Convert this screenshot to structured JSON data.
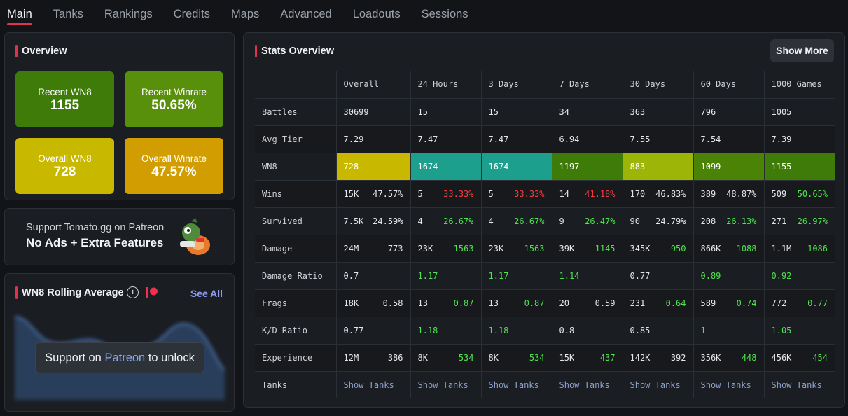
{
  "tabs": [
    "Main",
    "Tanks",
    "Rankings",
    "Credits",
    "Maps",
    "Advanced",
    "Loadouts",
    "Sessions"
  ],
  "overview": {
    "title": "Overview",
    "tiles": [
      {
        "label": "Recent WN8",
        "value": "1155",
        "color": "#3f7b08"
      },
      {
        "label": "Recent Winrate",
        "value": "50.65%",
        "color": "#588f0b"
      },
      {
        "label": "Overall WN8",
        "value": "728",
        "color": "#c9b800"
      },
      {
        "label": "Overall Winrate",
        "value": "47.57%",
        "color": "#d19d00"
      }
    ]
  },
  "patreon": {
    "line1": "Support Tomato.gg on Patreon",
    "line2": "No Ads + Extra Features"
  },
  "rolling": {
    "title": "WN8 Rolling Average",
    "see_all": "See All",
    "unlock_prefix": "Support on ",
    "unlock_link": "Patreon",
    "unlock_suffix": " to unlock"
  },
  "stats": {
    "title": "Stats Overview",
    "show_more": "Show More",
    "columns": [
      "Overall",
      "24 Hours",
      "3 Days",
      "7 Days",
      "30 Days",
      "60 Days",
      "1000 Games"
    ],
    "battles": [
      "30699",
      "15",
      "15",
      "34",
      "363",
      "796",
      "1005"
    ],
    "avg_tier": [
      "7.29",
      "7.47",
      "7.47",
      "6.94",
      "7.55",
      "7.54",
      "7.39"
    ],
    "wn8": [
      {
        "v": "728",
        "c": "#c9b800"
      },
      {
        "v": "1674",
        "c": "#1c9f8c"
      },
      {
        "v": "1674",
        "c": "#1c9f8c"
      },
      {
        "v": "1197",
        "c": "#3f7b08"
      },
      {
        "v": "883",
        "c": "#9db506"
      },
      {
        "v": "1099",
        "c": "#4a8306"
      },
      {
        "v": "1155",
        "c": "#3f7b08"
      }
    ],
    "wins": [
      {
        "a": "15K",
        "b": "47.57%",
        "cls": ""
      },
      {
        "a": "5",
        "b": "33.33%",
        "cls": "red"
      },
      {
        "a": "5",
        "b": "33.33%",
        "cls": "red"
      },
      {
        "a": "14",
        "b": "41.18%",
        "cls": "red"
      },
      {
        "a": "170",
        "b": "46.83%",
        "cls": ""
      },
      {
        "a": "389",
        "b": "48.87%",
        "cls": ""
      },
      {
        "a": "509",
        "b": "50.65%",
        "cls": "green"
      }
    ],
    "survived": [
      {
        "a": "7.5K",
        "b": "24.59%",
        "cls": ""
      },
      {
        "a": "4",
        "b": "26.67%",
        "cls": "green"
      },
      {
        "a": "4",
        "b": "26.67%",
        "cls": "green"
      },
      {
        "a": "9",
        "b": "26.47%",
        "cls": "green"
      },
      {
        "a": "90",
        "b": "24.79%",
        "cls": ""
      },
      {
        "a": "208",
        "b": "26.13%",
        "cls": "green"
      },
      {
        "a": "271",
        "b": "26.97%",
        "cls": "green"
      }
    ],
    "damage": [
      {
        "a": "24M",
        "b": "773",
        "cls": ""
      },
      {
        "a": "23K",
        "b": "1563",
        "cls": "green"
      },
      {
        "a": "23K",
        "b": "1563",
        "cls": "green"
      },
      {
        "a": "39K",
        "b": "1145",
        "cls": "green"
      },
      {
        "a": "345K",
        "b": "950",
        "cls": "green"
      },
      {
        "a": "866K",
        "b": "1088",
        "cls": "green"
      },
      {
        "a": "1.1M",
        "b": "1086",
        "cls": "green"
      }
    ],
    "damage_ratio": [
      {
        "v": "0.7",
        "cls": ""
      },
      {
        "v": "1.17",
        "cls": "green"
      },
      {
        "v": "1.17",
        "cls": "green"
      },
      {
        "v": "1.14",
        "cls": "green"
      },
      {
        "v": "0.77",
        "cls": ""
      },
      {
        "v": "0.89",
        "cls": "green"
      },
      {
        "v": "0.92",
        "cls": "green"
      }
    ],
    "frags": [
      {
        "a": "18K",
        "b": "0.58",
        "cls": ""
      },
      {
        "a": "13",
        "b": "0.87",
        "cls": "green"
      },
      {
        "a": "13",
        "b": "0.87",
        "cls": "green"
      },
      {
        "a": "20",
        "b": "0.59",
        "cls": ""
      },
      {
        "a": "231",
        "b": "0.64",
        "cls": "green"
      },
      {
        "a": "589",
        "b": "0.74",
        "cls": "green"
      },
      {
        "a": "772",
        "b": "0.77",
        "cls": "green"
      }
    ],
    "kd": [
      {
        "v": "0.77",
        "cls": ""
      },
      {
        "v": "1.18",
        "cls": "green"
      },
      {
        "v": "1.18",
        "cls": "green"
      },
      {
        "v": "0.8",
        "cls": ""
      },
      {
        "v": "0.85",
        "cls": ""
      },
      {
        "v": "1",
        "cls": "green"
      },
      {
        "v": "1.05",
        "cls": "green"
      }
    ],
    "experience": [
      {
        "a": "12M",
        "b": "386",
        "cls": ""
      },
      {
        "a": "8K",
        "b": "534",
        "cls": "green"
      },
      {
        "a": "8K",
        "b": "534",
        "cls": "green"
      },
      {
        "a": "15K",
        "b": "437",
        "cls": "green"
      },
      {
        "a": "142K",
        "b": "392",
        "cls": ""
      },
      {
        "a": "356K",
        "b": "448",
        "cls": "green"
      },
      {
        "a": "456K",
        "b": "454",
        "cls": "green"
      }
    ],
    "row_labels": {
      "battles": "Battles",
      "avg_tier": "Avg Tier",
      "wn8": "WN8",
      "wins": "Wins",
      "survived": "Survived",
      "damage": "Damage",
      "damage_ratio": "Damage Ratio",
      "frags": "Frags",
      "kd": "K/D Ratio",
      "experience": "Experience",
      "tanks": "Tanks"
    },
    "show_tanks": "Show Tanks"
  }
}
